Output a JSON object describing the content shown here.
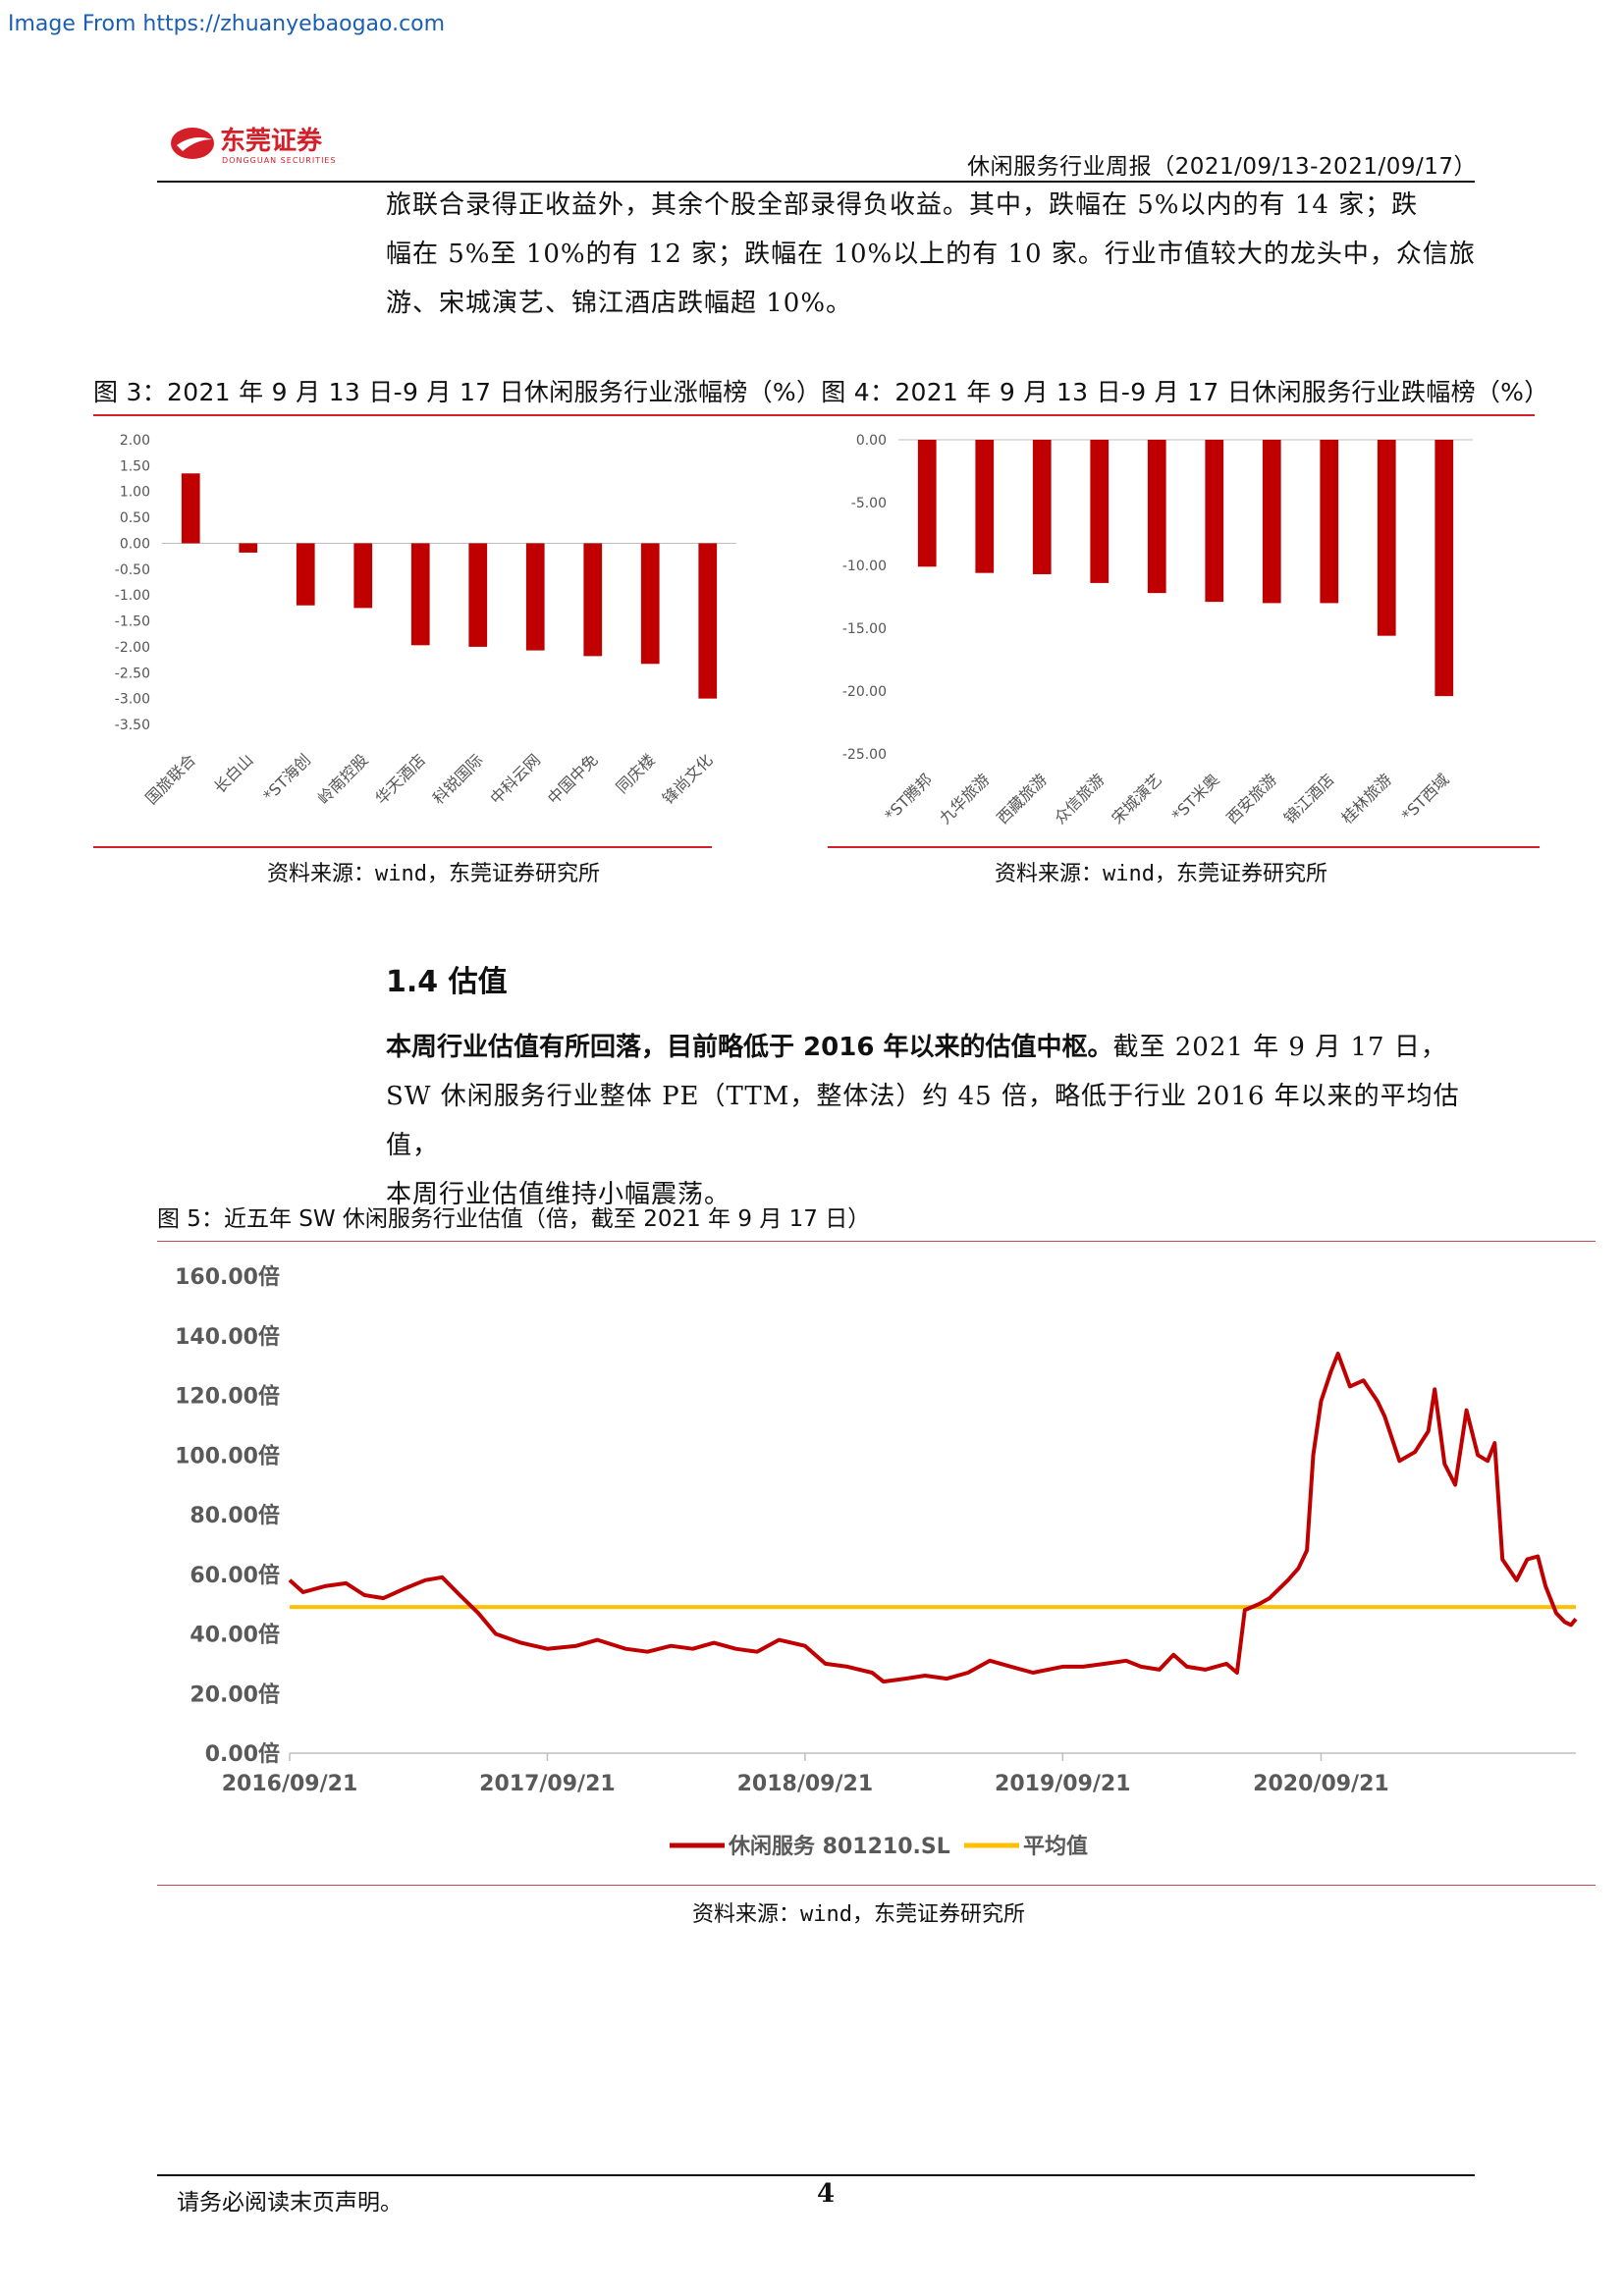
{
  "watermark": "Image From https://zhuanyebaogao.com",
  "header": {
    "logo_cn": "东莞证券",
    "logo_en": "DONGGUAN SECURITIES",
    "report_title": "休闲服务行业周报（2021/09/13-2021/09/17）"
  },
  "intro_lines": [
    "旅联合录得正收益外，其余个股全部录得负收益。其中，跌幅在 5%以内的有 14 家；跌",
    "幅在 5%至 10%的有 12 家；跌幅在 10%以上的有 10 家。行业市值较大的龙头中，众信旅",
    "游、宋城演艺、锦江酒店跌幅超 10%。"
  ],
  "figures_row_title": "图 3：2021 年 9 月 13 日-9 月 17 日休闲服务行业涨幅榜（%）图 4：2021 年 9 月 13 日-9 月 17 日休闲服务行业跌幅榜（%）",
  "source_left": "资料来源：wind，东莞证券研究所",
  "source_right": "资料来源：wind，东莞证券研究所",
  "section": {
    "title": "1.4 估值",
    "lead_bold": "本周行业估值有所回落，目前略低于 2016 年以来的估值中枢。",
    "line1_rest": "截至 2021 年 9 月 17 日，",
    "line2": "SW 休闲服务行业整体 PE（TTM，整体法）约 45 倍，略低于行业 2016 年以来的平均估值，",
    "line3": "本周行业估值维持小幅震荡。"
  },
  "fig5_title": "图 5：近五年 SW 休闲服务行业估值（倍，截至 2021 年 9 月 17 日）",
  "source_fig5": "资料来源：wind，东莞证券研究所",
  "footer": {
    "note": "请务必阅读末页声明。",
    "page": "4"
  },
  "chart_data": [
    {
      "type": "bar",
      "title": "",
      "categories": [
        "国旅联合",
        "长白山",
        "*ST海创",
        "岭南控股",
        "华天酒店",
        "科锐国际",
        "中科云网",
        "中国中免",
        "同庆楼",
        "锋尚文化"
      ],
      "values": [
        1.35,
        -0.18,
        -1.2,
        -1.25,
        -1.97,
        -2.0,
        -2.07,
        -2.18,
        -2.33,
        -3.0
      ],
      "ylim": [
        -3.5,
        2.0
      ],
      "yticks": [
        "2.00",
        "1.50",
        "1.00",
        "0.50",
        "0.00",
        "-0.50",
        "-1.00",
        "-1.50",
        "-2.00",
        "-2.50",
        "-3.00",
        "-3.50"
      ],
      "color": "#c00000",
      "grid": false
    },
    {
      "type": "bar",
      "title": "",
      "categories": [
        "*ST腾邦",
        "九华旅游",
        "西藏旅游",
        "众信旅游",
        "宋城演艺",
        "*ST米奥",
        "西安旅游",
        "锦江酒店",
        "桂林旅游",
        "*ST西域"
      ],
      "values": [
        -10.1,
        -10.6,
        -10.7,
        -11.4,
        -12.2,
        -12.9,
        -13.0,
        -13.0,
        -15.6,
        -20.4
      ],
      "ylim": [
        -25.0,
        0.0
      ],
      "yticks": [
        "0.00",
        "-5.00",
        "-10.00",
        "-15.00",
        "-20.00",
        "-25.00"
      ],
      "color": "#c00000",
      "grid": false
    },
    {
      "type": "line",
      "title": "",
      "ylim": [
        0,
        160
      ],
      "yticks": [
        "160.00倍",
        "140.00倍",
        "120.00倍",
        "100.00倍",
        "80.00倍",
        "60.00倍",
        "40.00倍",
        "20.00倍",
        "0.00倍"
      ],
      "xticks": [
        "2016/09/21",
        "2017/09/21",
        "2018/09/21",
        "2019/09/21",
        "2020/09/21"
      ],
      "x_start": "2016/09/21",
      "x_end": "2021/09/17",
      "legend_position": "bottom",
      "grid": false,
      "series": [
        {
          "name": "休闲服务 801210.SL",
          "color": "#c00000",
          "points": [
            [
              "2016/09/21",
              58
            ],
            [
              "2016/10/10",
              54
            ],
            [
              "2016/11/10",
              56
            ],
            [
              "2016/12/10",
              57
            ],
            [
              "2017/01/05",
              53
            ],
            [
              "2017/02/01",
              52
            ],
            [
              "2017/03/01",
              55
            ],
            [
              "2017/04/01",
              58
            ],
            [
              "2017/04/25",
              59
            ],
            [
              "2017/05/20",
              53
            ],
            [
              "2017/06/15",
              47
            ],
            [
              "2017/07/10",
              40
            ],
            [
              "2017/08/15",
              37
            ],
            [
              "2017/09/21",
              35
            ],
            [
              "2017/11/01",
              36
            ],
            [
              "2017/12/01",
              38
            ],
            [
              "2018/01/10",
              35
            ],
            [
              "2018/02/10",
              34
            ],
            [
              "2018/03/15",
              36
            ],
            [
              "2018/04/15",
              35
            ],
            [
              "2018/05/15",
              37
            ],
            [
              "2018/06/15",
              35
            ],
            [
              "2018/07/15",
              34
            ],
            [
              "2018/08/15",
              38
            ],
            [
              "2018/09/21",
              36
            ],
            [
              "2018/10/20",
              30
            ],
            [
              "2018/11/20",
              29
            ],
            [
              "2018/12/25",
              27
            ],
            [
              "2019/01/10",
              24
            ],
            [
              "2019/02/10",
              25
            ],
            [
              "2019/03/10",
              26
            ],
            [
              "2019/04/10",
              25
            ],
            [
              "2019/05/10",
              27
            ],
            [
              "2019/06/10",
              31
            ],
            [
              "2019/07/10",
              29
            ],
            [
              "2019/08/10",
              27
            ],
            [
              "2019/09/21",
              29
            ],
            [
              "2019/10/20",
              29
            ],
            [
              "2019/11/20",
              30
            ],
            [
              "2019/12/20",
              31
            ],
            [
              "2020/01/10",
              29
            ],
            [
              "2020/02/05",
              28
            ],
            [
              "2020/02/25",
              33
            ],
            [
              "2020/03/15",
              29
            ],
            [
              "2020/04/10",
              28
            ],
            [
              "2020/05/10",
              30
            ],
            [
              "2020/05/25",
              27
            ],
            [
              "2020/06/05",
              48
            ],
            [
              "2020/06/25",
              50
            ],
            [
              "2020/07/10",
              52
            ],
            [
              "2020/08/05",
              58
            ],
            [
              "2020/08/20",
              62
            ],
            [
              "2020/09/01",
              68
            ],
            [
              "2020/09/10",
              100
            ],
            [
              "2020/09/21",
              118
            ],
            [
              "2020/10/05",
              128
            ],
            [
              "2020/10/15",
              134
            ],
            [
              "2020/11/01",
              123
            ],
            [
              "2020/11/20",
              125
            ],
            [
              "2020/12/10",
              118
            ],
            [
              "2020/12/20",
              113
            ],
            [
              "2021/01/10",
              98
            ],
            [
              "2021/02/01",
              101
            ],
            [
              "2021/02/20",
              108
            ],
            [
              "2021/03/01",
              122
            ],
            [
              "2021/03/15",
              97
            ],
            [
              "2021/03/30",
              90
            ],
            [
              "2021/04/15",
              115
            ],
            [
              "2021/05/01",
              100
            ],
            [
              "2021/05/15",
              98
            ],
            [
              "2021/05/25",
              104
            ],
            [
              "2021/06/05",
              65
            ],
            [
              "2021/06/25",
              58
            ],
            [
              "2021/07/10",
              65
            ],
            [
              "2021/07/25",
              66
            ],
            [
              "2021/08/05",
              56
            ],
            [
              "2021/08/20",
              47
            ],
            [
              "2021/09/01",
              44
            ],
            [
              "2021/09/10",
              43
            ],
            [
              "2021/09/17",
              45
            ]
          ]
        },
        {
          "name": "平均值",
          "color": "#ffc000",
          "values": [
            49,
            49
          ]
        }
      ]
    }
  ]
}
